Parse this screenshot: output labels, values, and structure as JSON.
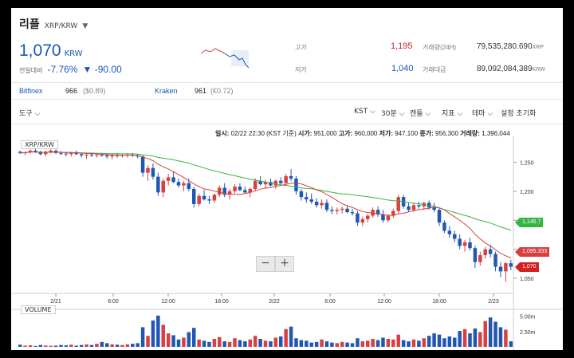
{
  "header": {
    "coin_name": "리플",
    "pair": "XRP/KRW",
    "price": "1,070",
    "price_unit": "KRW",
    "change_label": "전일대비",
    "change_pct": "-7.76%",
    "change_abs": "▼ -90.00"
  },
  "stats": {
    "high_label": "고가",
    "high": "1,195",
    "low_label": "저가",
    "low": "1,040",
    "volume_label": "거래량(24H)",
    "volume": "79,535,280.690",
    "volume_unit": "XRP",
    "amount_label": "거래대금",
    "amount": "89,092,084,389",
    "amount_unit": "KRW"
  },
  "exchanges": [
    {
      "name": "Bitfinex",
      "price": "966",
      "change": "($0.89)"
    },
    {
      "name": "Kraken",
      "price": "961",
      "change": "(€0.72)"
    }
  ],
  "toolbar": {
    "tools_label": "도구",
    "timezone": "KST",
    "interval": "30분",
    "candle": "캔들",
    "indicator": "지표",
    "theme": "테마",
    "reset": "설정 초기화"
  },
  "infoline": {
    "date_label": "일시:",
    "date": "02/22 22:30 (KST 기준)",
    "open_label": "시가:",
    "open": "951,000",
    "high_label": "고가:",
    "high": "960,000",
    "low_label": "저가:",
    "low": "947,100",
    "close_label": "종가:",
    "close": "956,300",
    "vol_label": "거래량:",
    "vol": "1,396,044"
  },
  "chart_labels": {
    "pair": "XRP/KRW",
    "volume": "VOLUME",
    "zoom_out": "−",
    "zoom_in": "+"
  },
  "chart_data": {
    "type": "candlestick",
    "x_ticks": [
      "2/21",
      "6:00",
      "12:00",
      "18:00",
      "2/22",
      "6:00",
      "12:00",
      "18:00",
      "2/23"
    ],
    "y_ticks": [
      1250,
      1200,
      1150,
      1100,
      1050
    ],
    "ylim": [
      1035,
      1285
    ],
    "volume_ticks": [
      "5.00m",
      "2.50m"
    ],
    "markers": [
      {
        "label": "1,146.7",
        "value": 1146.7,
        "color": "#35b543"
      },
      {
        "label": "1,095.333",
        "value": 1095.333,
        "color": "#d84040"
      },
      {
        "label": "1,070",
        "value": 1070,
        "color": "#d02020"
      }
    ],
    "up_color": "#d84040",
    "down_color": "#1f57b5",
    "ma_short_color": "#d84040",
    "ma_long_color": "#35b543",
    "candles": [
      [
        1268,
        1270,
        1264,
        1266
      ],
      [
        1266,
        1269,
        1262,
        1267
      ],
      [
        1267,
        1272,
        1265,
        1270
      ],
      [
        1270,
        1273,
        1266,
        1268
      ],
      [
        1268,
        1270,
        1262,
        1264
      ],
      [
        1264,
        1270,
        1260,
        1268
      ],
      [
        1268,
        1273,
        1265,
        1270
      ],
      [
        1270,
        1272,
        1264,
        1266
      ],
      [
        1266,
        1269,
        1262,
        1265
      ],
      [
        1265,
        1268,
        1260,
        1264
      ],
      [
        1264,
        1268,
        1260,
        1266
      ],
      [
        1266,
        1270,
        1262,
        1264
      ],
      [
        1264,
        1267,
        1258,
        1262
      ],
      [
        1262,
        1266,
        1256,
        1263
      ],
      [
        1263,
        1267,
        1259,
        1262
      ],
      [
        1262,
        1265,
        1258,
        1263
      ],
      [
        1263,
        1266,
        1259,
        1262
      ],
      [
        1262,
        1265,
        1256,
        1260
      ],
      [
        1260,
        1264,
        1255,
        1262
      ],
      [
        1262,
        1266,
        1258,
        1261
      ],
      [
        1261,
        1264,
        1258,
        1262
      ],
      [
        1262,
        1266,
        1258,
        1263
      ],
      [
        1263,
        1266,
        1259,
        1262
      ],
      [
        1262,
        1264,
        1257,
        1260
      ],
      [
        1260,
        1262,
        1225,
        1232
      ],
      [
        1232,
        1245,
        1218,
        1240
      ],
      [
        1240,
        1248,
        1220,
        1225
      ],
      [
        1225,
        1232,
        1192,
        1198
      ],
      [
        1198,
        1222,
        1190,
        1218
      ],
      [
        1218,
        1230,
        1210,
        1224
      ],
      [
        1224,
        1234,
        1214,
        1216
      ],
      [
        1216,
        1222,
        1206,
        1210
      ],
      [
        1210,
        1218,
        1200,
        1214
      ],
      [
        1214,
        1222,
        1200,
        1204
      ],
      [
        1204,
        1208,
        1172,
        1178
      ],
      [
        1178,
        1196,
        1174,
        1192
      ],
      [
        1192,
        1202,
        1184,
        1186
      ],
      [
        1186,
        1192,
        1178,
        1184
      ],
      [
        1184,
        1196,
        1180,
        1194
      ],
      [
        1194,
        1210,
        1190,
        1206
      ],
      [
        1206,
        1214,
        1190,
        1194
      ],
      [
        1194,
        1204,
        1186,
        1200
      ],
      [
        1200,
        1212,
        1196,
        1208
      ],
      [
        1208,
        1214,
        1200,
        1202
      ],
      [
        1202,
        1208,
        1196,
        1198
      ],
      [
        1198,
        1206,
        1190,
        1204
      ],
      [
        1204,
        1222,
        1200,
        1218
      ],
      [
        1218,
        1226,
        1210,
        1212
      ],
      [
        1212,
        1220,
        1204,
        1216
      ],
      [
        1216,
        1222,
        1208,
        1210
      ],
      [
        1210,
        1220,
        1204,
        1218
      ],
      [
        1218,
        1224,
        1212,
        1214
      ],
      [
        1214,
        1230,
        1210,
        1226
      ],
      [
        1226,
        1238,
        1218,
        1222
      ],
      [
        1222,
        1226,
        1194,
        1200
      ],
      [
        1200,
        1204,
        1184,
        1190
      ],
      [
        1190,
        1198,
        1180,
        1186
      ],
      [
        1186,
        1196,
        1178,
        1182
      ],
      [
        1182,
        1188,
        1172,
        1176
      ],
      [
        1176,
        1186,
        1170,
        1180
      ],
      [
        1180,
        1186,
        1164,
        1168
      ],
      [
        1168,
        1174,
        1160,
        1166
      ],
      [
        1166,
        1172,
        1160,
        1168
      ],
      [
        1168,
        1174,
        1162,
        1170
      ],
      [
        1170,
        1176,
        1162,
        1164
      ],
      [
        1164,
        1170,
        1158,
        1162
      ],
      [
        1162,
        1166,
        1140,
        1146
      ],
      [
        1146,
        1156,
        1140,
        1152
      ],
      [
        1152,
        1160,
        1146,
        1158
      ],
      [
        1158,
        1172,
        1154,
        1168
      ],
      [
        1168,
        1174,
        1156,
        1160
      ],
      [
        1160,
        1168,
        1146,
        1150
      ],
      [
        1150,
        1160,
        1146,
        1158
      ],
      [
        1158,
        1170,
        1154,
        1166
      ],
      [
        1166,
        1194,
        1162,
        1190
      ],
      [
        1190,
        1194,
        1170,
        1174
      ],
      [
        1174,
        1180,
        1164,
        1168
      ],
      [
        1168,
        1180,
        1164,
        1176
      ],
      [
        1176,
        1182,
        1170,
        1174
      ],
      [
        1174,
        1182,
        1168,
        1180
      ],
      [
        1180,
        1184,
        1168,
        1172
      ],
      [
        1172,
        1180,
        1164,
        1168
      ],
      [
        1168,
        1172,
        1140,
        1146
      ],
      [
        1146,
        1150,
        1128,
        1132
      ],
      [
        1132,
        1140,
        1120,
        1126
      ],
      [
        1126,
        1132,
        1112,
        1118
      ],
      [
        1118,
        1126,
        1100,
        1106
      ],
      [
        1106,
        1116,
        1096,
        1112
      ],
      [
        1112,
        1120,
        1098,
        1102
      ],
      [
        1102,
        1106,
        1068,
        1078
      ],
      [
        1078,
        1096,
        1072,
        1090
      ],
      [
        1090,
        1104,
        1084,
        1100
      ],
      [
        1100,
        1108,
        1086,
        1092
      ],
      [
        1092,
        1096,
        1062,
        1070
      ],
      [
        1070,
        1078,
        1052,
        1062
      ],
      [
        1062,
        1078,
        1044,
        1076
      ],
      [
        1076,
        1082,
        1064,
        1070
      ]
    ],
    "volumes": [
      0.35,
      0.2,
      0.25,
      0.15,
      0.3,
      0.22,
      0.18,
      0.2,
      0.3,
      0.25,
      0.35,
      0.2,
      0.3,
      0.4,
      0.3,
      0.5,
      0.8,
      0.6,
      0.4,
      0.35,
      0.3,
      0.4,
      0.5,
      0.6,
      3.2,
      1.8,
      4.3,
      5.1,
      3.6,
      2.2,
      1.9,
      1.2,
      1.5,
      2.4,
      3.1,
      1.2,
      1.0,
      0.8,
      1.3,
      1.6,
      0.9,
      0.8,
      1.4,
      1.1,
      0.9,
      1.2,
      1.8,
      1.3,
      1.0,
      0.9,
      1.5,
      1.7,
      2.9,
      3.3,
      1.4,
      1.1,
      1.0,
      0.7,
      0.8,
      1.2,
      0.9,
      0.7,
      0.6,
      0.8,
      0.7,
      0.6,
      1.4,
      0.9,
      1.0,
      1.3,
      1.1,
      1.5,
      1.3,
      1.2,
      2.0,
      1.1,
      0.9,
      1.2,
      1.0,
      1.4,
      1.8,
      2.2,
      2.0,
      1.4,
      1.7,
      1.5,
      2.6,
      2.9,
      2.2,
      3.0,
      2.4,
      4.2,
      4.8,
      4.1,
      3.2,
      2.8,
      0.9
    ]
  }
}
